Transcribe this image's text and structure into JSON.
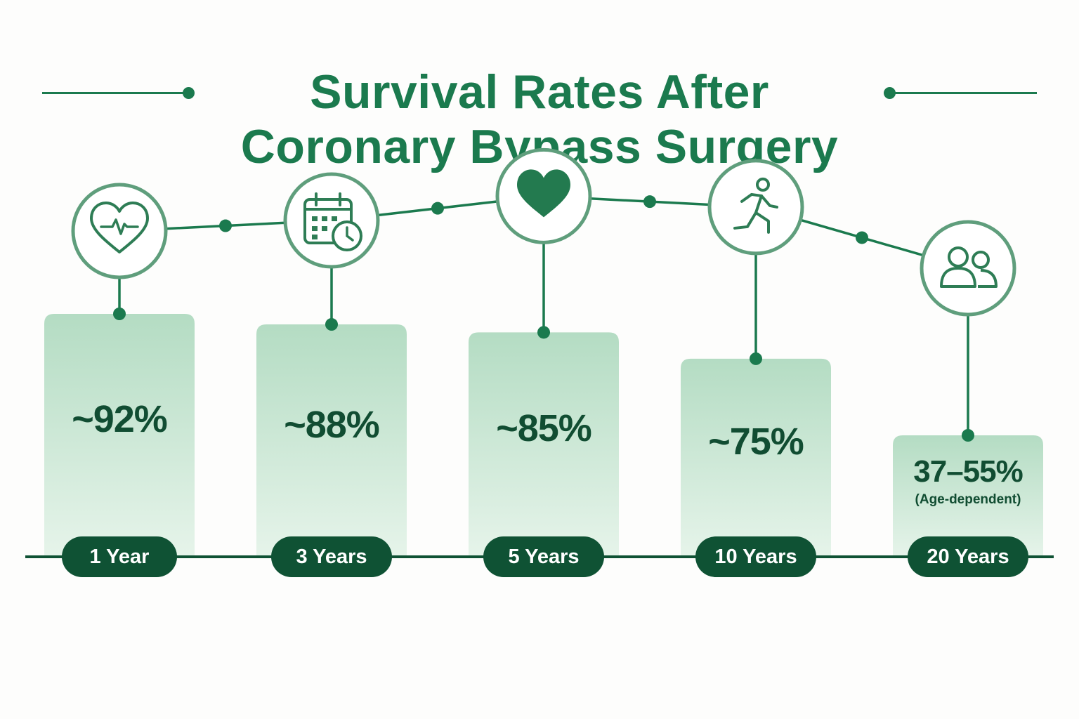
{
  "title": {
    "line1": "Survival Rates After",
    "line2": "Coronary Bypass Surgery"
  },
  "colors": {
    "accent": "#1b7a4e",
    "dark": "#0f5234",
    "bar_top": "#b4dcc3",
    "bar_bottom": "#e6f4ea",
    "icon_stroke": "#2e7d55"
  },
  "chart_data": {
    "type": "bar",
    "categories": [
      "1 Year",
      "3 Years",
      "5 Years",
      "10 Years",
      "20 Years"
    ],
    "values": [
      92,
      88,
      85,
      75,
      46
    ],
    "value_labels": [
      "~92%",
      "~88%",
      "~85%",
      "~75%",
      "37–55%"
    ],
    "notes": [
      "",
      "",
      "",
      "",
      "(Age-dependent)"
    ],
    "icons": [
      "heart-pulse-icon",
      "calendar-clock-icon",
      "heart-icon",
      "running-person-icon",
      "people-icon"
    ],
    "ranges": [
      null,
      null,
      null,
      null,
      [
        37,
        55
      ]
    ],
    "title": "Survival Rates After Coronary Bypass Surgery",
    "xlabel": "",
    "ylabel": "",
    "grid": false,
    "legend": "none"
  }
}
